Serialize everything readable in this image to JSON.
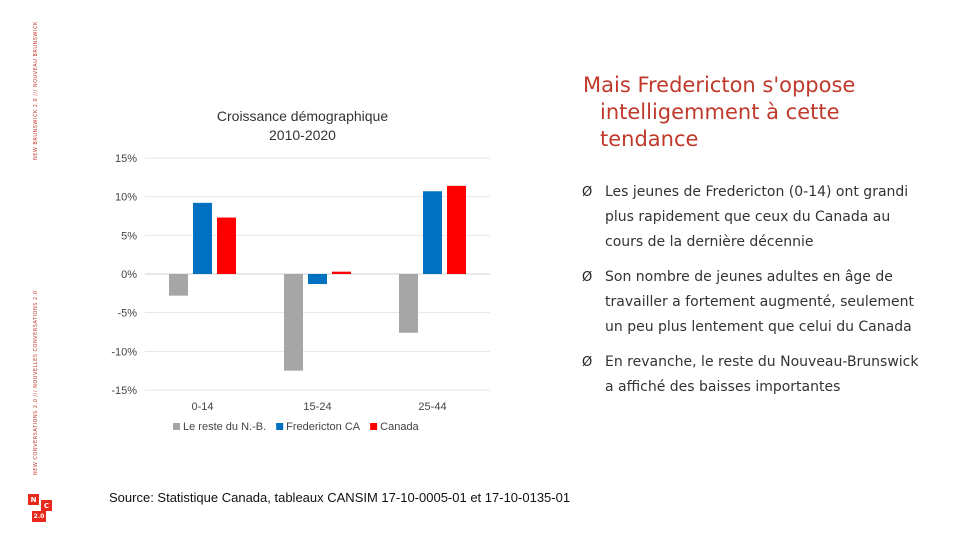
{
  "side_texts": {
    "top": "NEW BRUNSWICK 2.0 /// NOUVEAU BRUNSWICK",
    "bottom": "NEW CONVERSATIONS 2.0 /// NOUVELLES CONVERSATIONS 2.0"
  },
  "logo": {
    "letters": [
      "N",
      "C",
      "2.0"
    ]
  },
  "heading": {
    "line1": "Mais Fredericton s'oppose",
    "line2": "intelligemment à cette",
    "line3": "tendance"
  },
  "bullets": [
    {
      "arrow": "Ø",
      "text": "Les jeunes de Fredericton (0-14) ont grandi plus rapidement que ceux du Canada au cours de la dernière décennie"
    },
    {
      "arrow": "Ø",
      "text": "Son nombre de jeunes adultes en âge de travailler a fortement augmenté, seulement un peu plus lentement que celui du Canada"
    },
    {
      "arrow": "Ø",
      "text": "En revanche, le reste du Nouveau-Brunswick a affiché des baisses importantes"
    }
  ],
  "source": "Source: Statistique Canada, tableaux CANSIM 17-10-0005-01 et 17-10-0135-01",
  "chart_data": {
    "type": "bar",
    "title_line1": "Croissance démographique",
    "title_line2": "2010-2020",
    "categories": [
      "0-14",
      "15-24",
      "25-44"
    ],
    "series": [
      {
        "name": "Le reste du N.-B.",
        "color": "#a6a6a6",
        "values": [
          -2.8,
          -12.5,
          -7.6
        ]
      },
      {
        "name": "Fredericton CA",
        "color": "#0070c0",
        "values": [
          9.2,
          -1.3,
          10.7
        ]
      },
      {
        "name": "Canada",
        "color": "#ff0000",
        "values": [
          7.3,
          0.3,
          11.4
        ]
      }
    ],
    "y_ticks": [
      "15%",
      "10%",
      "5%",
      "0%",
      "-5%",
      "-10%",
      "-15%"
    ],
    "y_tick_values": [
      15,
      10,
      5,
      0,
      -5,
      -10,
      -15
    ],
    "ylim": [
      -15,
      15
    ],
    "grid": true,
    "legend_position": "bottom"
  }
}
